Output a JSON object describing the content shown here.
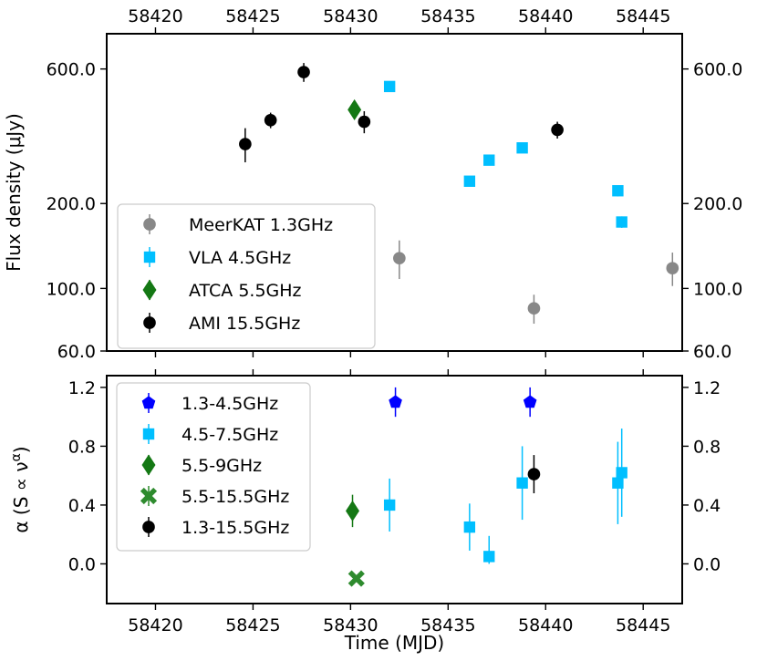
{
  "chart_data": [
    {
      "type": "scatter",
      "panel": "top",
      "xlabel": "Time (MJD)",
      "ylabel": "Flux density (μJy)",
      "yscale": "log",
      "xlim": [
        58417.5,
        58447.0
      ],
      "ylim": [
        60,
        800
      ],
      "x_ticks": [
        58420,
        58425,
        58430,
        58435,
        58440,
        58445
      ],
      "x_tick_labels": [
        "58420",
        "58425",
        "58430",
        "58435",
        "58440",
        "58445"
      ],
      "y_ticks": [
        60,
        100,
        200,
        600
      ],
      "y_tick_labels": [
        "60.0",
        "100.0",
        "200.0",
        "600.0"
      ],
      "legend_position": "lower-left",
      "series": [
        {
          "name": "MeerKAT 1.3GHz",
          "color": "#888888",
          "marker": "circle",
          "points": [
            {
              "x": 58432.5,
              "y": 128,
              "err": 20
            },
            {
              "x": 58439.4,
              "y": 85,
              "err": 10
            },
            {
              "x": 58446.5,
              "y": 118,
              "err": 16
            }
          ]
        },
        {
          "name": "VLA 4.5GHz",
          "color": "#00bfff",
          "marker": "square",
          "points": [
            {
              "x": 58432.0,
              "y": 520,
              "err": 8
            },
            {
              "x": 58436.1,
              "y": 240,
              "err": 6
            },
            {
              "x": 58437.1,
              "y": 285,
              "err": 6
            },
            {
              "x": 58438.8,
              "y": 315,
              "err": 6
            },
            {
              "x": 58443.7,
              "y": 222,
              "err": 10
            },
            {
              "x": 58443.9,
              "y": 172,
              "err": 8
            }
          ]
        },
        {
          "name": "ATCA 5.5GHz",
          "color": "#147814",
          "marker": "diamond",
          "points": [
            {
              "x": 58430.2,
              "y": 430,
              "err": 20
            }
          ]
        },
        {
          "name": "AMI 15.5GHz",
          "color": "#000000",
          "marker": "circle",
          "points": [
            {
              "x": 58424.6,
              "y": 325,
              "err": 45
            },
            {
              "x": 58425.9,
              "y": 395,
              "err": 25
            },
            {
              "x": 58427.6,
              "y": 585,
              "err": 45
            },
            {
              "x": 58430.7,
              "y": 390,
              "err": 35
            },
            {
              "x": 58440.6,
              "y": 365,
              "err": 25
            }
          ]
        }
      ]
    },
    {
      "type": "scatter",
      "panel": "bottom",
      "xlabel": "Time (MJD)",
      "ylabel": "α (S ∝ ν^α)",
      "xlim": [
        58417.5,
        58447.0
      ],
      "ylim": [
        -0.27,
        1.28
      ],
      "x_ticks": [
        58420,
        58425,
        58430,
        58435,
        58440,
        58445
      ],
      "x_tick_labels": [
        "58420",
        "58425",
        "58430",
        "58435",
        "58440",
        "58445"
      ],
      "y_ticks": [
        0.0,
        0.4,
        0.8,
        1.2
      ],
      "y_tick_labels": [
        "0.0",
        "0.4",
        "0.8",
        "1.2"
      ],
      "legend_position": "upper-left",
      "series": [
        {
          "name": "1.3-4.5GHz",
          "color": "#0000ff",
          "marker": "pentagon",
          "points": [
            {
              "x": 58432.3,
              "y": 1.1,
              "err": 0.1
            },
            {
              "x": 58439.2,
              "y": 1.1,
              "err": 0.1
            }
          ]
        },
        {
          "name": "4.5-7.5GHz",
          "color": "#00bfff",
          "marker": "square",
          "points": [
            {
              "x": 58432.0,
              "y": 0.4,
              "err": 0.18
            },
            {
              "x": 58436.1,
              "y": 0.25,
              "err": 0.16
            },
            {
              "x": 58437.1,
              "y": 0.05,
              "err": 0.14
            },
            {
              "x": 58438.8,
              "y": 0.55,
              "err": 0.25
            },
            {
              "x": 58443.7,
              "y": 0.55,
              "err": 0.28
            },
            {
              "x": 58443.9,
              "y": 0.62,
              "err": 0.3
            }
          ]
        },
        {
          "name": "5.5-9GHz",
          "color": "#147814",
          "marker": "diamond",
          "points": [
            {
              "x": 58430.1,
              "y": 0.36,
              "err": 0.11
            }
          ]
        },
        {
          "name": "5.5-15.5GHz",
          "color": "#2e8b2e",
          "marker": "x",
          "points": [
            {
              "x": 58430.3,
              "y": -0.1,
              "err": 0.1
            }
          ]
        },
        {
          "name": "1.3-15.5GHz",
          "color": "#000000",
          "marker": "circle",
          "points": [
            {
              "x": 58439.4,
              "y": 0.61,
              "err": 0.13
            }
          ]
        }
      ]
    }
  ]
}
